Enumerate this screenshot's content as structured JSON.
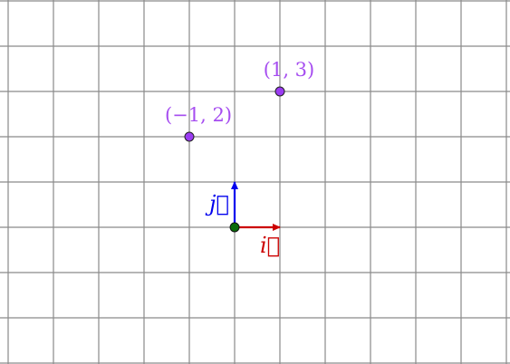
{
  "colors": {
    "background": "#ffffff",
    "grid": "#8a8a8a",
    "point_fill": "#9b3cf2",
    "point_label": "#a64df0",
    "vector_i": "#cc0000",
    "vector_j": "#0000ee",
    "origin_fill": "#0a6b0a"
  },
  "grid": {
    "x_min": -5,
    "x_max": 6,
    "y_min": -3,
    "y_max": 5,
    "step": 1
  },
  "origin": {
    "x": 0,
    "y": 0
  },
  "points": [
    {
      "name": "point-minus1-2",
      "x": -1,
      "y": 2,
      "label": "(−1, 2)"
    },
    {
      "name": "point-1-3",
      "x": 1,
      "y": 3,
      "label": "(1, 3)"
    }
  ],
  "vectors": [
    {
      "name": "vector-i",
      "dx": 1,
      "dy": 0,
      "label": "i⃗",
      "color_key": "vector_i"
    },
    {
      "name": "vector-j",
      "dx": 0,
      "dy": 1,
      "label": "j⃗",
      "color_key": "vector_j"
    }
  ]
}
